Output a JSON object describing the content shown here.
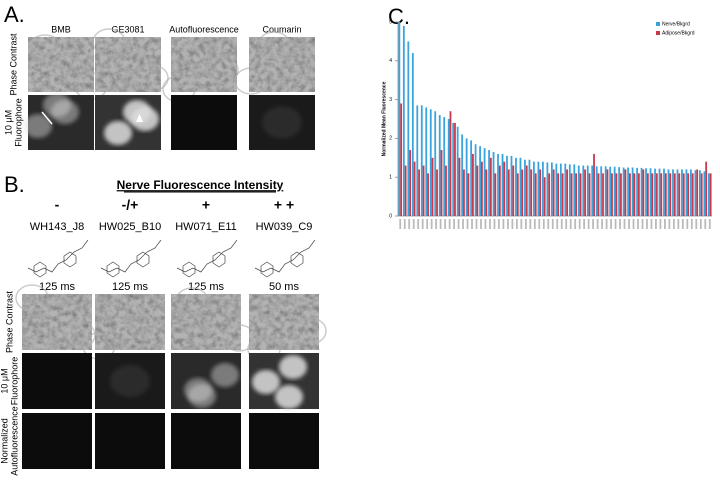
{
  "panel_a": {
    "label": "A.",
    "columns": [
      "BMB",
      "GE3081",
      "Autofluorescence",
      "Coumarin"
    ],
    "row_labels": [
      [
        "Phase Contrast"
      ],
      [
        "10 μM",
        "Fluorophore"
      ]
    ]
  },
  "panel_b": {
    "label": "B.",
    "title": "Nerve Fluorescence Intensity",
    "intensities": [
      "-",
      "-/+",
      "+",
      "+ +"
    ],
    "compounds": [
      "WH143_J8",
      "HW025_B10",
      "HW071_E11",
      "HW039_C9"
    ],
    "exposures": [
      "125 ms",
      "125 ms",
      "125 ms",
      "50 ms"
    ],
    "row_labels": [
      [
        "Phase Contrast"
      ],
      [
        "10 μM",
        "Fluorophore"
      ],
      [
        "Normalized",
        "Autofluorescence"
      ]
    ]
  },
  "panel_c_label": "C.",
  "chart_data": {
    "type": "bar",
    "y_label": "Normalized Mean Fluorescence",
    "ylim": [
      0,
      5
    ],
    "yticks": [
      0,
      1,
      2,
      3,
      4,
      5
    ],
    "legend": "upper right",
    "categories": [
      null,
      null,
      null,
      null,
      null,
      null,
      null,
      null,
      null,
      null,
      null,
      null,
      null,
      null,
      null,
      null,
      null,
      null,
      null,
      null,
      null,
      null,
      null,
      null,
      null,
      null,
      null,
      null,
      null,
      null,
      null,
      null,
      null,
      null,
      null,
      null,
      null,
      null,
      null,
      null,
      null,
      null,
      null,
      null,
      null,
      null,
      null,
      null,
      null,
      null,
      null,
      null,
      null,
      null,
      null,
      null,
      null,
      null,
      null,
      null,
      null,
      null,
      null,
      null,
      null,
      null,
      null,
      null,
      null,
      null
    ],
    "series": [
      {
        "name": "Nerve/Bkgrd",
        "color": "#3ba3dc",
        "values": [
          5.0,
          4.9,
          4.5,
          4.2,
          2.85,
          2.85,
          2.8,
          2.75,
          2.7,
          2.6,
          2.55,
          2.5,
          2.4,
          2.3,
          2.1,
          2.0,
          1.95,
          1.85,
          1.8,
          1.75,
          1.7,
          1.65,
          1.6,
          1.6,
          1.55,
          1.55,
          1.5,
          1.5,
          1.45,
          1.45,
          1.4,
          1.4,
          1.4,
          1.38,
          1.38,
          1.35,
          1.35,
          1.35,
          1.33,
          1.33,
          1.3,
          1.3,
          1.3,
          1.3,
          1.28,
          1.28,
          1.28,
          1.27,
          1.27,
          1.26,
          1.25,
          1.25,
          1.25,
          1.24,
          1.24,
          1.23,
          1.23,
          1.22,
          1.22,
          1.22,
          1.2,
          1.2,
          1.2,
          1.2,
          1.2,
          1.2,
          1.18,
          1.18,
          1.15,
          1.1
        ]
      },
      {
        "name": "Adipose/Bkgrd",
        "color": "#c83a4a",
        "values": [
          2.9,
          1.3,
          1.7,
          1.4,
          1.2,
          1.3,
          1.1,
          1.5,
          1.2,
          1.7,
          1.3,
          2.7,
          2.4,
          1.5,
          1.2,
          1.1,
          1.6,
          1.3,
          1.4,
          1.2,
          1.5,
          1.1,
          1.3,
          1.4,
          1.2,
          1.3,
          1.1,
          1.2,
          1.3,
          1.2,
          1.1,
          1.2,
          1.0,
          1.1,
          1.2,
          1.1,
          1.1,
          1.2,
          1.1,
          1.1,
          1.1,
          1.2,
          1.1,
          1.6,
          1.1,
          1.1,
          1.2,
          1.1,
          1.1,
          1.1,
          1.2,
          1.1,
          1.1,
          1.1,
          1.2,
          1.1,
          1.1,
          1.1,
          1.1,
          1.1,
          1.1,
          1.1,
          1.1,
          1.1,
          1.1,
          1.1,
          1.2,
          1.1,
          1.4,
          1.1
        ]
      }
    ]
  }
}
